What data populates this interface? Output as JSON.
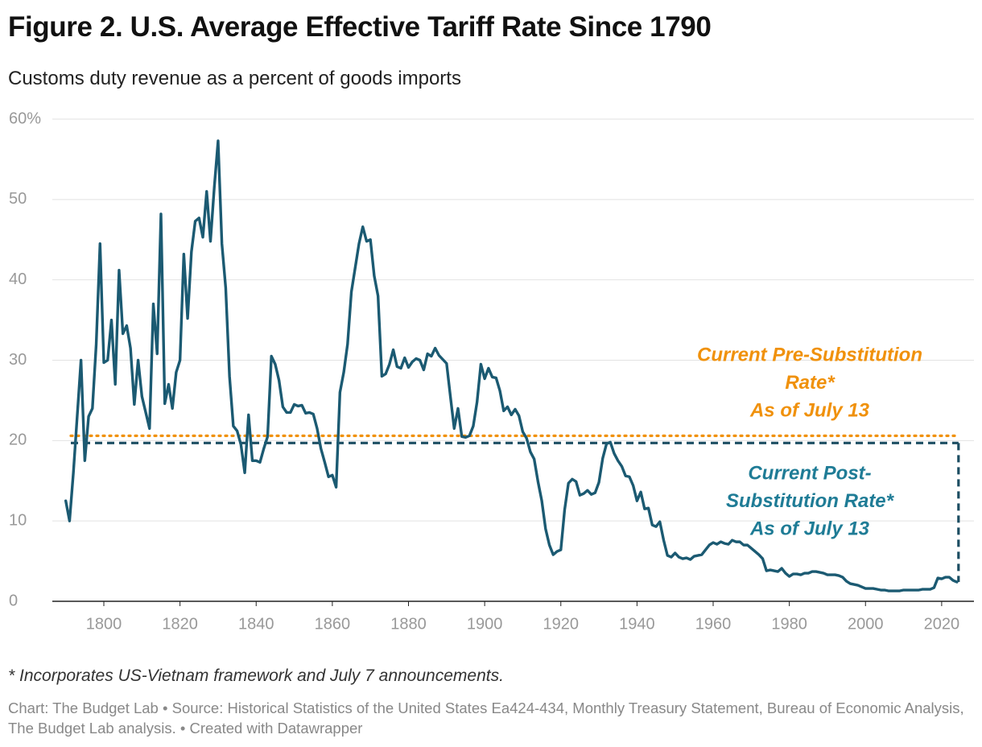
{
  "chart_data": {
    "type": "line",
    "title": "Figure 2. U.S. Average Effective Tariff Rate Since 1790",
    "subtitle": "Customs duty revenue as a percent of goods imports",
    "footnote": "* Incorporates US-Vietnam framework and July 7 announcements.",
    "source": "Chart: The Budget Lab • Source: Historical Statistics of the United States Ea424-434, Monthly Treasury Statement, Bureau of Economic Analysis, The Budget Lab analysis. • Created with Datawrapper",
    "color": "#1b5a72",
    "grid": true,
    "xlim": [
      1787,
      2027
    ],
    "ylim": [
      0,
      60
    ],
    "xticks": [
      1800,
      1820,
      1840,
      1860,
      1880,
      1900,
      1920,
      1940,
      1960,
      1980,
      2000,
      2020
    ],
    "yticks": [
      0,
      10,
      20,
      30,
      40,
      50,
      {
        "value": 60,
        "label": "60%"
      }
    ],
    "x": [
      1790,
      1791,
      1792,
      1793,
      1794,
      1795,
      1796,
      1797,
      1798,
      1799,
      1800,
      1801,
      1802,
      1803,
      1804,
      1805,
      1806,
      1807,
      1808,
      1809,
      1810,
      1811,
      1812,
      1813,
      1814,
      1815,
      1816,
      1817,
      1818,
      1819,
      1820,
      1821,
      1822,
      1823,
      1824,
      1825,
      1826,
      1827,
      1828,
      1829,
      1830,
      1831,
      1832,
      1833,
      1834,
      1835,
      1836,
      1837,
      1838,
      1839,
      1840,
      1841,
      1842,
      1843,
      1844,
      1845,
      1846,
      1847,
      1848,
      1849,
      1850,
      1851,
      1852,
      1853,
      1854,
      1855,
      1856,
      1857,
      1858,
      1859,
      1860,
      1861,
      1862,
      1863,
      1864,
      1865,
      1866,
      1867,
      1868,
      1869,
      1870,
      1871,
      1872,
      1873,
      1874,
      1875,
      1876,
      1877,
      1878,
      1879,
      1880,
      1881,
      1882,
      1883,
      1884,
      1885,
      1886,
      1887,
      1888,
      1889,
      1890,
      1891,
      1892,
      1893,
      1894,
      1895,
      1896,
      1897,
      1898,
      1899,
      1900,
      1901,
      1902,
      1903,
      1904,
      1905,
      1906,
      1907,
      1908,
      1909,
      1910,
      1911,
      1912,
      1913,
      1914,
      1915,
      1916,
      1917,
      1918,
      1919,
      1920,
      1921,
      1922,
      1923,
      1924,
      1925,
      1926,
      1927,
      1928,
      1929,
      1930,
      1931,
      1932,
      1933,
      1934,
      1935,
      1936,
      1937,
      1938,
      1939,
      1940,
      1941,
      1942,
      1943,
      1944,
      1945,
      1946,
      1947,
      1948,
      1949,
      1950,
      1951,
      1952,
      1953,
      1954,
      1955,
      1956,
      1957,
      1958,
      1959,
      1960,
      1961,
      1962,
      1963,
      1964,
      1965,
      1966,
      1967,
      1968,
      1969,
      1970,
      1971,
      1972,
      1973,
      1974,
      1975,
      1976,
      1977,
      1978,
      1979,
      1980,
      1981,
      1982,
      1983,
      1984,
      1985,
      1986,
      1987,
      1988,
      1989,
      1990,
      1991,
      1992,
      1993,
      1994,
      1995,
      1996,
      1997,
      1998,
      1999,
      2000,
      2001,
      2002,
      2003,
      2004,
      2005,
      2006,
      2007,
      2008,
      2009,
      2010,
      2011,
      2012,
      2013,
      2014,
      2015,
      2016,
      2017,
      2018,
      2019,
      2020,
      2021,
      2022,
      2023,
      2024
    ],
    "values": [
      12.5,
      10,
      16,
      23,
      30,
      17.5,
      23,
      24,
      32,
      44.5,
      29.7,
      30,
      35,
      27,
      41.2,
      33.3,
      34.3,
      31.5,
      24.5,
      30,
      25.5,
      23.5,
      21.5,
      37,
      30.8,
      48.2,
      24.6,
      27,
      24,
      28.5,
      30,
      43.2,
      35.2,
      43.5,
      47.3,
      47.7,
      45.3,
      51,
      44.8,
      51.5,
      57.3,
      44.5,
      39,
      28,
      21.8,
      21.2,
      19.5,
      16,
      23.2,
      17.5,
      17.5,
      17.3,
      19,
      20.5,
      30.5,
      29.5,
      27.5,
      24.2,
      23.5,
      23.5,
      24.5,
      24.3,
      24.4,
      23.4,
      23.5,
      23.3,
      21.5,
      19,
      17.3,
      15.5,
      15.7,
      14.2,
      26,
      28.5,
      32,
      38.5,
      41.5,
      44.5,
      46.6,
      44.8,
      45,
      40.5,
      38,
      28,
      28.3,
      29.5,
      31.3,
      29.2,
      29,
      30.3,
      29.1,
      29.8,
      30.2,
      30,
      28.8,
      30.8,
      30.5,
      31.5,
      30.6,
      30.1,
      29.6,
      25.5,
      21.5,
      24,
      20.5,
      20.4,
      20.6,
      21.8,
      24.8,
      29.5,
      27.7,
      29,
      27.9,
      27.8,
      26.2,
      23.7,
      24.2,
      23.2,
      23.9,
      23.1,
      21.1,
      20.3,
      18.6,
      17.7,
      14.9,
      12.5,
      9,
      7,
      5.8,
      6.2,
      6.4,
      11.4,
      14.7,
      15.2,
      14.9,
      13.2,
      13.4,
      13.8,
      13.3,
      13.5,
      14.8,
      17.8,
      19.6,
      19.8,
      18.4,
      17.5,
      16.8,
      15.6,
      15.5,
      14.4,
      12.5,
      13.6,
      11.5,
      11.6,
      9.5,
      9.3,
      9.9,
      7.6,
      5.7,
      5.5,
      6,
      5.5,
      5.3,
      5.4,
      5.2,
      5.6,
      5.7,
      5.8,
      6.4,
      7,
      7.3,
      7.1,
      7.4,
      7.2,
      7.1,
      7.6,
      7.4,
      7.4,
      7,
      7,
      6.6,
      6.2,
      5.8,
      5.3,
      3.8,
      3.9,
      3.8,
      3.7,
      4.1,
      3.5,
      3.1,
      3.4,
      3.4,
      3.3,
      3.5,
      3.5,
      3.7,
      3.7,
      3.6,
      3.5,
      3.3,
      3.3,
      3.3,
      3.2,
      3,
      2.5,
      2.2,
      2.1,
      2,
      1.8,
      1.6,
      1.6,
      1.6,
      1.5,
      1.4,
      1.4,
      1.3,
      1.3,
      1.3,
      1.3,
      1.4,
      1.4,
      1.4,
      1.4,
      1.4,
      1.5,
      1.5,
      1.5,
      1.7,
      2.9,
      2.8,
      3,
      3,
      2.6,
      2.4
    ],
    "reference_lines": [
      {
        "value": 20.6,
        "color": "#f0910b",
        "style": "dotted",
        "text_color": "#f0910b",
        "label": [
          "Current Pre-Substitution",
          "Rate*",
          "As of July 13"
        ]
      },
      {
        "value": 19.7,
        "color": "#1d4e63",
        "style": "dashed",
        "text_color": "#1f7c96",
        "label": [
          "Current Post-",
          "Substitution Rate*",
          "As of July 13"
        ]
      }
    ]
  }
}
